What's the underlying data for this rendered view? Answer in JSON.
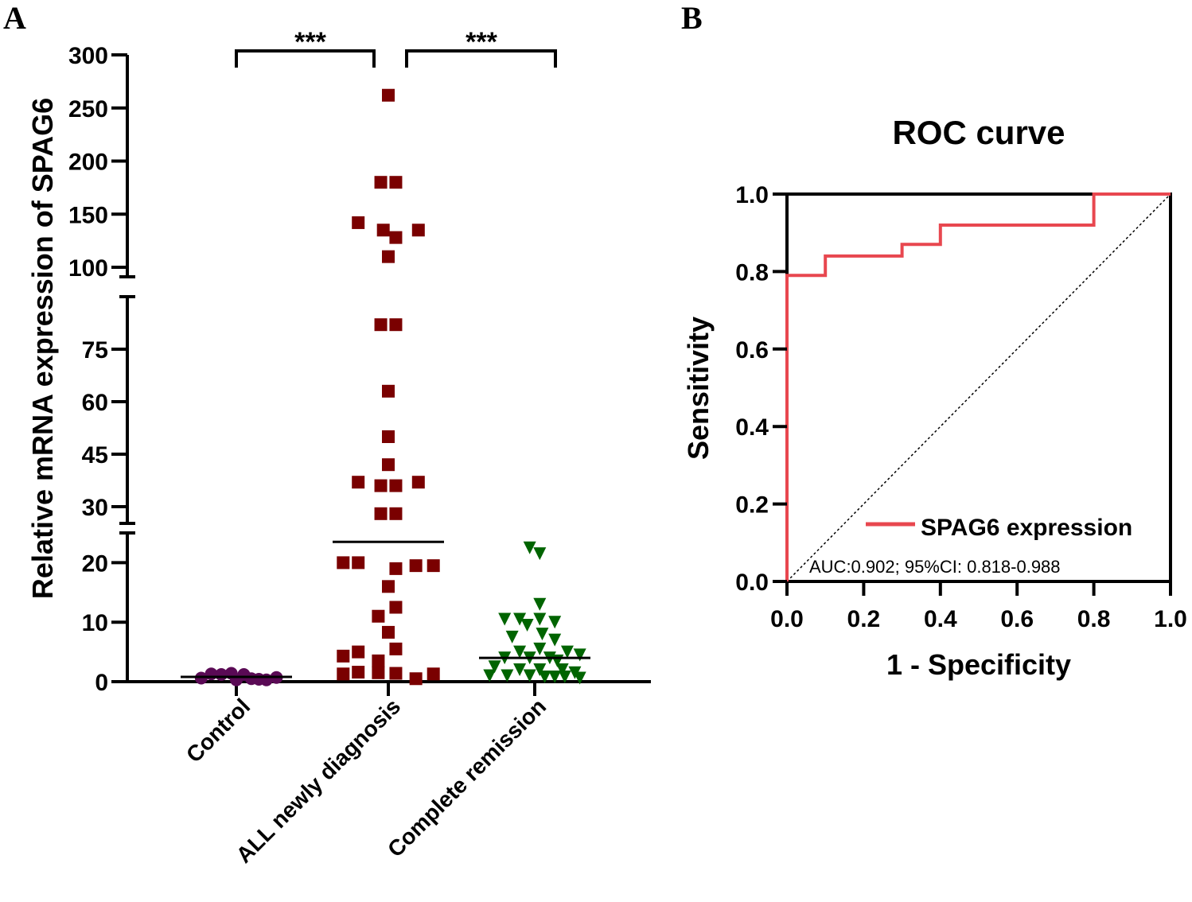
{
  "colors": {
    "control": "#5a0a55",
    "all": "#7a0000",
    "cr": "#006400",
    "roc": "#e8474f",
    "axis": "#000000"
  },
  "chart_data": [
    {
      "panel": "A",
      "type": "scatter",
      "ylabel": "Relative mRNA expression of SPAG6",
      "categories": [
        "Control",
        "ALL newly diagnosis",
        "Complete remission"
      ],
      "axis_breaks": [
        [
          25,
          30
        ],
        [
          90,
          100
        ]
      ],
      "segments": [
        {
          "range": [
            0,
            25
          ],
          "ticks": [
            0,
            10,
            20
          ]
        },
        {
          "range": [
            30,
            90
          ],
          "ticks": [
            30,
            45,
            60,
            75
          ]
        },
        {
          "range": [
            100,
            300
          ],
          "ticks": [
            100,
            150,
            200,
            250,
            300
          ]
        }
      ],
      "significance": [
        {
          "from": "Control",
          "to": "ALL newly diagnosis",
          "label": "***"
        },
        {
          "from": "ALL newly diagnosis",
          "to": "Complete remission",
          "label": "***"
        }
      ],
      "series": [
        {
          "name": "Control",
          "marker": "circle",
          "color_key": "control",
          "median": 0.8,
          "values": [
            0.6,
            1.3,
            1.2,
            1.4,
            0.3,
            1.2,
            0.5,
            0.4,
            0.3,
            0.7
          ],
          "offsets": [
            -0.7,
            -0.5,
            -0.3,
            -0.1,
            0.0,
            0.15,
            0.3,
            0.45,
            0.6,
            0.8
          ]
        },
        {
          "name": "ALL newly diagnosis",
          "marker": "square",
          "color_key": "all",
          "median": 23.5,
          "values": [
            262,
            180,
            180,
            142,
            135,
            128,
            135,
            110,
            82,
            82,
            63,
            50,
            42,
            37,
            36,
            36,
            37,
            28,
            28,
            20,
            20,
            19,
            19.5,
            19.5,
            16,
            12.5,
            11,
            8.3,
            5.5,
            4.3,
            5,
            3.5,
            1.3,
            1.6,
            1.5,
            1.4,
            0.5,
            1.3
          ],
          "offsets": [
            0,
            -0.15,
            0.15,
            -0.6,
            -0.1,
            0.15,
            0.6,
            0,
            -0.15,
            0.15,
            0,
            0,
            0,
            -0.6,
            -0.15,
            0.15,
            0.6,
            -0.15,
            0.15,
            -0.9,
            -0.6,
            0.15,
            0.55,
            0.9,
            0,
            0.15,
            -0.2,
            0,
            0.15,
            -0.9,
            -0.6,
            -0.2,
            -0.9,
            -0.6,
            -0.2,
            0.15,
            0.55,
            0.9
          ]
        },
        {
          "name": "Complete remission",
          "marker": "triangle-down",
          "color_key": "cr",
          "median": 4,
          "values": [
            22.5,
            21.5,
            13,
            10.5,
            10.5,
            10.5,
            10,
            9.5,
            8,
            7.5,
            7,
            5.5,
            5,
            5,
            4.5,
            4,
            4,
            4,
            3.5,
            2.5,
            2,
            2,
            2,
            1.5,
            1,
            1,
            1,
            0.8,
            0.8,
            0.8,
            0.6
          ],
          "offsets": [
            -0.1,
            0.1,
            0.1,
            -0.6,
            -0.3,
            0.1,
            0.4,
            -0.15,
            0.15,
            -0.45,
            0.4,
            0.1,
            -0.3,
            0.65,
            0.9,
            -0.1,
            0.3,
            -0.6,
            0.45,
            -0.8,
            -0.3,
            0.1,
            0.55,
            0.8,
            -0.9,
            -0.55,
            -0.1,
            0.2,
            0.4,
            0.6,
            0.9
          ]
        }
      ]
    },
    {
      "panel": "B",
      "type": "line",
      "title": "ROC curve",
      "xlabel": "1 - Specificity",
      "ylabel": "Sensitivity",
      "xlim": [
        0,
        1
      ],
      "ylim": [
        0,
        1
      ],
      "xticks": [
        0.0,
        0.2,
        0.4,
        0.6,
        0.8,
        1.0
      ],
      "yticks": [
        0.0,
        0.2,
        0.4,
        0.6,
        0.8,
        1.0
      ],
      "tick_labels": [
        "0.0",
        "0.2",
        "0.4",
        "0.6",
        "0.8",
        "1.0"
      ],
      "series": [
        {
          "name": "SPAG6 expression",
          "color_key": "roc",
          "x": [
            0,
            0,
            0.1,
            0.1,
            0.3,
            0.3,
            0.4,
            0.4,
            0.8,
            0.8,
            1.0
          ],
          "y": [
            0,
            0.79,
            0.79,
            0.84,
            0.84,
            0.87,
            0.87,
            0.92,
            0.92,
            1.0,
            1.0
          ]
        },
        {
          "name": "reference",
          "style": "dotted",
          "x": [
            0,
            1
          ],
          "y": [
            0,
            1
          ]
        }
      ],
      "legend": "bottom-right",
      "annotation": "AUC:0.902;  95%CI: 0.818-0.988"
    }
  ]
}
